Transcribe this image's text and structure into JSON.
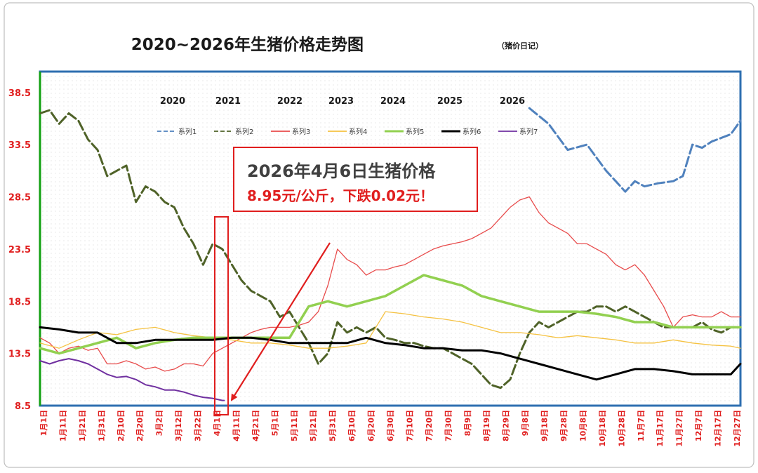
{
  "chart_data": {
    "type": "line",
    "title": "2020~2026年生猪价格走势图",
    "subtitle": "（猪价日记）",
    "xlabel": "",
    "ylabel": "",
    "ylim": [
      8.5,
      40.5
    ],
    "y_ticks": [
      "8.5",
      "13.5",
      "18.5",
      "23.5",
      "28.5",
      "33.5",
      "38.5"
    ],
    "x_ticks": [
      "1月1日",
      "1月11日",
      "1月21日",
      "1月31日",
      "2月10日",
      "2月20日",
      "3月2日",
      "3月12日",
      "3月22日",
      "4月1日",
      "4月11日",
      "4月21日",
      "5月1日",
      "5月11日",
      "5月21日",
      "5月31日",
      "6月10日",
      "6月20日",
      "6月30日",
      "7月10日",
      "7月20日",
      "7月30日",
      "8月9日",
      "8月19日",
      "8月29日",
      "9月8日",
      "9月18日",
      "9月28日",
      "10月8日",
      "10月18日",
      "10月28日",
      "11月7日",
      "11月17日",
      "11月27日",
      "12月7日",
      "12月17日",
      "12月27日"
    ],
    "year_labels": [
      "2020",
      "2021",
      "2022",
      "2023",
      "2024",
      "2025",
      "2026"
    ],
    "grid": true,
    "legend_position": "top",
    "series": [
      {
        "name": "系列1",
        "color": "#4f81bd",
        "dash": "dash",
        "x": [
          255,
          265,
          275,
          285,
          295,
          300,
          305,
          310,
          315,
          322,
          330,
          335,
          340,
          345,
          350,
          360,
          365
        ],
        "y": [
          37.0,
          35.5,
          33.0,
          33.5,
          31.0,
          30.0,
          29.0,
          30.0,
          29.5,
          29.8,
          30.0,
          30.5,
          33.5,
          33.2,
          33.8,
          34.5,
          35.8
        ]
      },
      {
        "name": "系列2",
        "color": "#4f6228",
        "dash": "dash",
        "x": [
          0,
          5,
          10,
          15,
          20,
          25,
          30,
          35,
          40,
          45,
          50,
          55,
          60,
          65,
          70,
          75,
          80,
          85,
          90,
          95,
          100,
          105,
          110,
          115,
          120,
          125,
          130,
          135,
          140,
          145,
          150,
          155,
          160,
          165,
          170,
          175,
          180,
          185,
          190,
          195,
          200,
          205,
          210,
          215,
          220,
          225,
          230,
          235,
          240,
          245,
          250,
          255,
          260,
          265,
          270,
          275,
          280,
          285,
          290,
          295,
          300,
          305,
          310,
          315,
          320,
          325,
          330,
          335,
          340,
          345,
          350,
          355,
          360,
          365
        ],
        "y": [
          36.5,
          36.8,
          35.5,
          36.5,
          35.8,
          34.0,
          33.0,
          30.5,
          31.0,
          31.5,
          28.0,
          29.5,
          29.0,
          28.0,
          27.5,
          25.5,
          24.0,
          22.0,
          24.0,
          23.5,
          22.0,
          20.5,
          19.5,
          19.0,
          18.5,
          17.0,
          17.5,
          16.0,
          14.5,
          12.5,
          13.5,
          16.5,
          15.5,
          16.0,
          15.5,
          16.0,
          15.0,
          14.8,
          14.5,
          14.5,
          14.2,
          14.0,
          14.0,
          13.5,
          13.0,
          12.5,
          11.5,
          10.5,
          10.2,
          11.0,
          13.5,
          15.5,
          16.5,
          16.0,
          16.5,
          17.0,
          17.5,
          17.5,
          18.0,
          18.0,
          17.5,
          18.0,
          17.5,
          17.0,
          16.5,
          16.0,
          16.0,
          16.0,
          16.0,
          16.5,
          15.8,
          15.5,
          16.0,
          16.0
        ]
      },
      {
        "name": "系列3",
        "color": "#e84c4c",
        "dash": "solid",
        "x": [
          0,
          5,
          10,
          15,
          20,
          25,
          30,
          35,
          40,
          45,
          50,
          55,
          60,
          65,
          70,
          75,
          80,
          85,
          90,
          95,
          100,
          105,
          110,
          115,
          120,
          125,
          130,
          135,
          140,
          145,
          150,
          155,
          160,
          165,
          170,
          175,
          180,
          185,
          190,
          195,
          200,
          205,
          210,
          215,
          220,
          225,
          230,
          235,
          240,
          245,
          250,
          255,
          260,
          265,
          270,
          275,
          280,
          285,
          290,
          295,
          300,
          305,
          310,
          315,
          320,
          325,
          330,
          335,
          340,
          345,
          350,
          355,
          360,
          365
        ],
        "y": [
          15.0,
          14.5,
          13.5,
          14.0,
          14.2,
          13.8,
          14.0,
          12.5,
          12.5,
          12.8,
          12.5,
          12.0,
          12.2,
          11.8,
          12.0,
          12.5,
          12.5,
          12.3,
          13.5,
          14.0,
          14.5,
          15.0,
          15.5,
          15.8,
          16.0,
          16.0,
          16.0,
          16.2,
          16.5,
          17.5,
          20.0,
          23.5,
          22.5,
          22.0,
          21.0,
          21.5,
          21.5,
          21.8,
          22.0,
          22.5,
          23.0,
          23.5,
          23.8,
          24.0,
          24.2,
          24.5,
          25.0,
          25.5,
          26.5,
          27.5,
          28.2,
          28.5,
          27.0,
          26.0,
          25.5,
          25.0,
          24.0,
          24.0,
          23.5,
          23.0,
          22.0,
          21.5,
          22.0,
          21.0,
          19.5,
          18.0,
          16.0,
          17.0,
          17.2,
          17.0,
          17.0,
          17.5,
          17.0,
          17.0
        ]
      },
      {
        "name": "系列4",
        "color": "#f5c242",
        "dash": "solid",
        "x": [
          0,
          10,
          20,
          30,
          40,
          50,
          60,
          70,
          80,
          90,
          100,
          110,
          120,
          130,
          140,
          150,
          160,
          170,
          180,
          190,
          200,
          210,
          220,
          230,
          240,
          250,
          260,
          270,
          280,
          290,
          300,
          310,
          320,
          330,
          340,
          350,
          360,
          365
        ],
        "y": [
          14.5,
          14.0,
          14.8,
          15.5,
          15.3,
          15.8,
          16.0,
          15.5,
          15.2,
          15.0,
          14.8,
          14.5,
          14.5,
          14.3,
          14.0,
          14.0,
          14.2,
          14.5,
          17.5,
          17.3,
          17.0,
          16.8,
          16.5,
          16.0,
          15.5,
          15.5,
          15.3,
          15.0,
          15.2,
          15.0,
          14.8,
          14.5,
          14.5,
          14.8,
          14.5,
          14.3,
          14.2,
          14.0
        ]
      },
      {
        "name": "系列5",
        "color": "#92d050",
        "dash": "solid",
        "x": [
          0,
          10,
          20,
          30,
          40,
          50,
          60,
          70,
          80,
          90,
          100,
          110,
          120,
          130,
          140,
          150,
          160,
          170,
          180,
          190,
          200,
          210,
          220,
          230,
          240,
          250,
          260,
          270,
          280,
          290,
          300,
          310,
          320,
          330,
          340,
          350,
          360,
          365
        ],
        "y": [
          14.0,
          13.5,
          14.0,
          14.5,
          15.0,
          14.0,
          14.5,
          14.8,
          15.0,
          15.0,
          15.0,
          15.0,
          15.0,
          15.0,
          18.0,
          18.5,
          18.0,
          18.5,
          19.0,
          20.0,
          21.0,
          20.5,
          20.0,
          19.0,
          18.5,
          18.0,
          17.5,
          17.5,
          17.5,
          17.3,
          17.0,
          16.5,
          16.5,
          16.0,
          16.0,
          16.0,
          16.0,
          16.0
        ]
      },
      {
        "name": "系列6",
        "color": "#000000",
        "dash": "solid",
        "x": [
          0,
          10,
          20,
          30,
          40,
          50,
          60,
          70,
          80,
          90,
          100,
          110,
          120,
          130,
          140,
          150,
          160,
          170,
          180,
          190,
          200,
          210,
          220,
          230,
          240,
          250,
          260,
          270,
          280,
          290,
          300,
          310,
          320,
          330,
          340,
          350,
          360,
          365
        ],
        "y": [
          16.0,
          15.8,
          15.5,
          15.5,
          14.5,
          14.5,
          14.8,
          14.8,
          14.8,
          14.8,
          15.0,
          15.0,
          14.8,
          14.5,
          14.5,
          14.5,
          14.5,
          15.0,
          14.5,
          14.3,
          14.0,
          14.0,
          13.8,
          13.8,
          13.5,
          13.0,
          12.5,
          12.0,
          11.5,
          11.0,
          11.5,
          12.0,
          12.0,
          11.8,
          11.5,
          11.5,
          11.5,
          12.5
        ]
      },
      {
        "name": "系列7",
        "color": "#7030a0",
        "dash": "solid",
        "x": [
          0,
          5,
          10,
          15,
          20,
          25,
          30,
          35,
          40,
          45,
          50,
          55,
          60,
          65,
          70,
          75,
          80,
          85,
          90,
          95,
          96
        ],
        "y": [
          12.8,
          12.5,
          12.8,
          13.0,
          12.8,
          12.5,
          12.0,
          11.5,
          11.2,
          11.3,
          11.0,
          10.5,
          10.3,
          10.0,
          10.0,
          9.8,
          9.5,
          9.3,
          9.2,
          9.0,
          9.0
        ]
      }
    ]
  },
  "annotation": {
    "headline": "2026年4月6日生猪价格",
    "detail": "8.95元/公斤，下跌0.02元！"
  }
}
